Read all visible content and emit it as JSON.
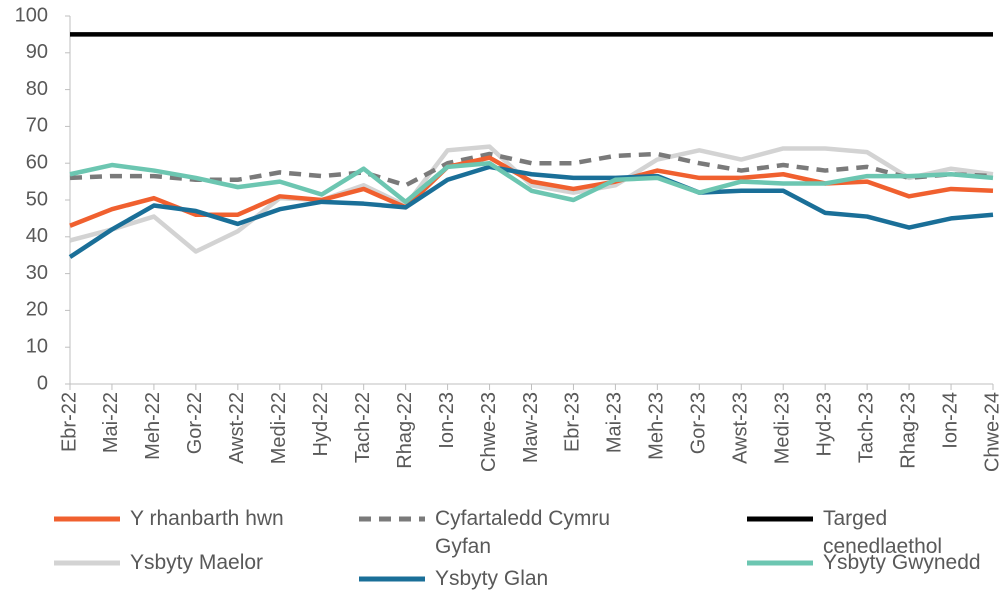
{
  "chart_data": {
    "type": "line",
    "categories": [
      "Ebr-22",
      "Mai-22",
      "Meh-22",
      "Gor-22",
      "Awst-22",
      "Medi-22",
      "Hyd-22",
      "Tach-22",
      "Rhag-22",
      "Ion-23",
      "Chwe-23",
      "Maw-23",
      "Ebr-23",
      "Mai-23",
      "Meh-23",
      "Gor-23",
      "Awst-23",
      "Medi-23",
      "Hyd-23",
      "Tach-23",
      "Rhag-23",
      "Ion-24",
      "Chwe-24"
    ],
    "series": [
      {
        "name": "Y rhanbarth hwn",
        "color": "#f0602f",
        "values": [
          43,
          47.5,
          50.5,
          46,
          46,
          51,
          50,
          53,
          48,
          59,
          61.5,
          55,
          53,
          55,
          58,
          56,
          56,
          57,
          54.5,
          55,
          51,
          53,
          52.5
        ]
      },
      {
        "name": "Cyfartaledd Cymru Gyfan",
        "color": "#7a7a7a",
        "dashed": true,
        "values": [
          56,
          56.5,
          56.5,
          55.5,
          55.5,
          57.5,
          56.5,
          57.5,
          54,
          60,
          62.5,
          60,
          60,
          62,
          62.5,
          60,
          58,
          59.5,
          58,
          59,
          56,
          57,
          56.5
        ]
      },
      {
        "name": "Targed cenedlaethol",
        "color": "#000000",
        "values": [
          95,
          95,
          95,
          95,
          95,
          95,
          95,
          95,
          95,
          95,
          95,
          95,
          95,
          95,
          95,
          95,
          95,
          95,
          95,
          95,
          95,
          95,
          95
        ]
      },
      {
        "name": "Ysbyty Maelor",
        "color": "#d3d3d3",
        "values": [
          39,
          42,
          45.5,
          36,
          41.5,
          50.5,
          50,
          54,
          48.5,
          63.5,
          64.5,
          54,
          52,
          54,
          61,
          63.5,
          61,
          64,
          64,
          63,
          56,
          58.5,
          57
        ]
      },
      {
        "name": "Ysbyty Glan Clwyd",
        "color": "#1a6f98",
        "values": [
          34.5,
          42,
          48.5,
          47,
          43.5,
          47.5,
          49.5,
          49,
          48,
          55.5,
          59,
          57,
          56,
          56,
          56.5,
          52,
          52.5,
          52.5,
          46.5,
          45.5,
          42.5,
          45,
          46
        ]
      },
      {
        "name": "Ysbyty Gwynedd",
        "color": "#6cc6b1",
        "values": [
          57,
          59.5,
          58,
          56,
          53.5,
          55,
          51.5,
          58.5,
          49.5,
          59,
          60,
          52.5,
          50,
          55.5,
          56,
          52,
          55,
          54.5,
          54.5,
          56.5,
          56.5,
          57,
          56
        ]
      }
    ],
    "ylim": [
      0,
      100
    ],
    "yticks": [
      0,
      10,
      20,
      30,
      40,
      50,
      60,
      70,
      80,
      90,
      100
    ]
  }
}
